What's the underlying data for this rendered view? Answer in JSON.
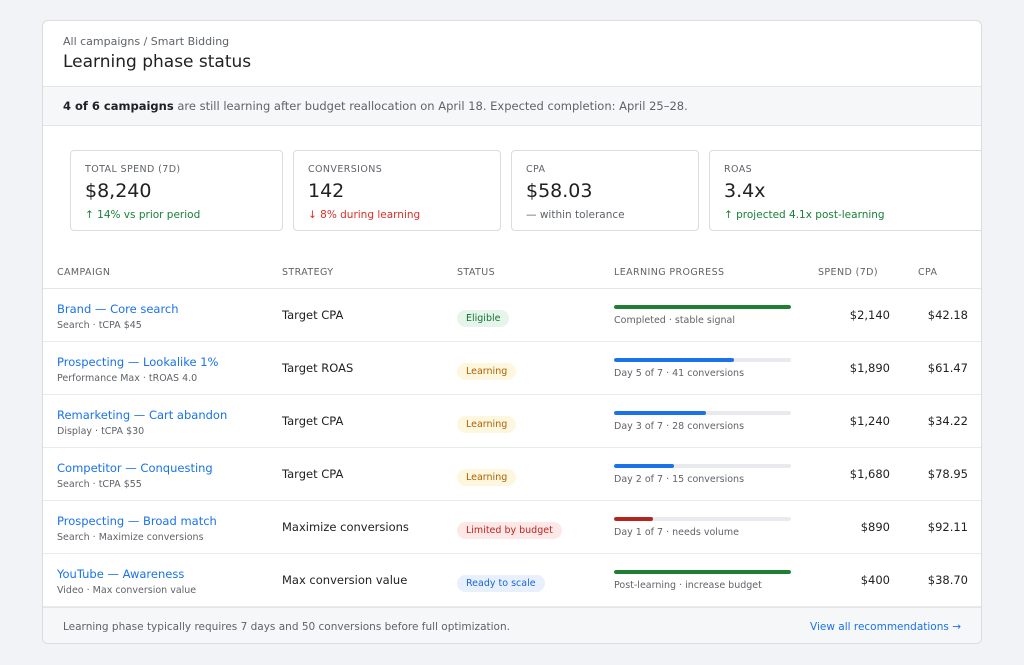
{
  "breadcrumb": "All campaigns / Smart Bidding",
  "page_title": "Learning phase status",
  "banner": {
    "bold": "4 of 6 campaigns",
    "text": " are still learning after budget reallocation on April 18. Expected completion: April 25–28."
  },
  "kpis": [
    {
      "label": "TOTAL SPEND (7D)",
      "value": "$8,240",
      "delta": "↑ 14% vs prior period",
      "tone": "pos"
    },
    {
      "label": "CONVERSIONS",
      "value": "142",
      "delta": "↓ 8% during learning",
      "tone": "neg"
    },
    {
      "label": "CPA",
      "value": "$58.03",
      "delta": "— within tolerance",
      "tone": "neu"
    },
    {
      "label": "ROAS",
      "value": "3.4x",
      "delta": "↑ projected 4.1x post-learning",
      "tone": "pos"
    }
  ],
  "table": {
    "columns": [
      "CAMPAIGN",
      "STRATEGY",
      "STATUS",
      "LEARNING PROGRESS",
      "SPEND (7D)",
      "CPA"
    ],
    "rows": [
      {
        "name": "Brand — Core search",
        "sub": "Search · tCPA $45",
        "strategy": "Target CPA",
        "status": "Eligible",
        "status_kind": "eligible",
        "progress": 1.0,
        "progress_color": "#1e7e34",
        "progress_text": "Completed · stable signal",
        "spend": "$2,140",
        "cpa": "$42.18"
      },
      {
        "name": "Prospecting — Lookalike 1%",
        "sub": "Performance Max · tROAS 4.0",
        "strategy": "Target ROAS",
        "status": "Learning",
        "status_kind": "learning",
        "progress": 0.68,
        "progress_color": "#1a73e8",
        "progress_text": "Day 5 of 7 · 41 conversions",
        "spend": "$1,890",
        "cpa": "$61.47"
      },
      {
        "name": "Remarketing — Cart abandon",
        "sub": "Display · tCPA $30",
        "strategy": "Target CPA",
        "status": "Learning",
        "status_kind": "learning",
        "progress": 0.52,
        "progress_color": "#1a73e8",
        "progress_text": "Day 3 of 7 · 28 conversions",
        "spend": "$1,240",
        "cpa": "$34.22"
      },
      {
        "name": "Competitor — Conquesting",
        "sub": "Search · tCPA $55",
        "strategy": "Target CPA",
        "status": "Learning",
        "status_kind": "learning",
        "progress": 0.34,
        "progress_color": "#1a73e8",
        "progress_text": "Day 2 of 7 · 15 conversions",
        "spend": "$1,680",
        "cpa": "$78.95"
      },
      {
        "name": "Prospecting — Broad match",
        "sub": "Search · Maximize conversions",
        "strategy": "Maximize conversions",
        "status": "Limited by budget",
        "status_kind": "limited",
        "progress": 0.22,
        "progress_color": "#b3261e",
        "progress_text": "Day 1 of 7 · needs volume",
        "spend": "$890",
        "cpa": "$92.11"
      },
      {
        "name": "YouTube — Awareness",
        "sub": "Video · Max conversion value",
        "strategy": "Max conversion value",
        "status": "Ready to scale",
        "status_kind": "ready",
        "progress": 1.0,
        "progress_color": "#1e7e34",
        "progress_text": "Post-learning · increase budget",
        "spend": "$400",
        "cpa": "$38.70"
      }
    ]
  },
  "footer": {
    "note": "Learning phase typically requires 7 days and 50 conversions before full optimization.",
    "link": "View all recommendations →"
  },
  "colors": {
    "accent": "#1a73e8",
    "positive": "#188038",
    "negative": "#d93025",
    "badge_eligible": "#e6f4ea",
    "badge_learning": "#fef7e0",
    "badge_limited": "#fce8e6",
    "badge_ready": "#e8f0fe"
  }
}
